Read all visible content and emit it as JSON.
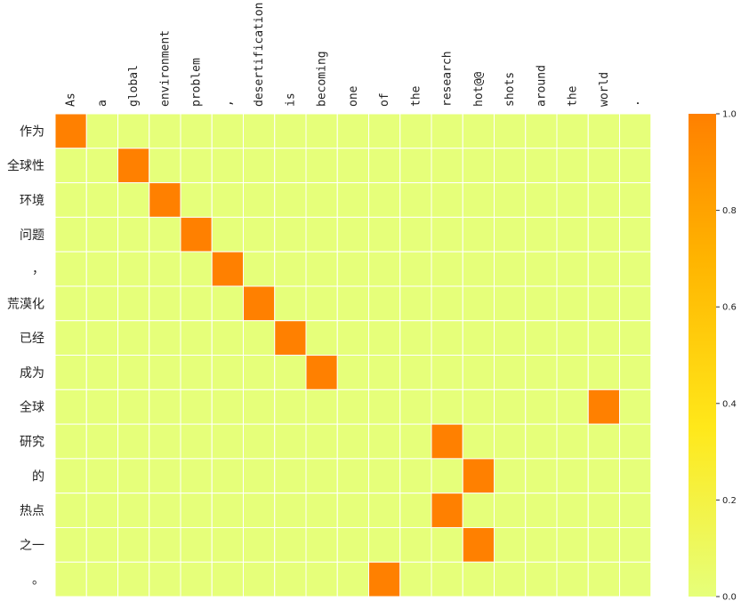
{
  "chart_data": {
    "type": "heatmap",
    "title": "",
    "xlabel": "",
    "ylabel": "",
    "columns": [
      "As",
      "a",
      "global",
      "environment",
      "problem",
      ",",
      "desertification",
      "is",
      "becoming",
      "one",
      "of",
      "the",
      "research",
      "hot@@",
      "shots",
      "around",
      "the",
      "world",
      "."
    ],
    "rows": [
      "作为",
      "全球性",
      "环境",
      "问题",
      "，",
      "荒漠化",
      "已经",
      "成为",
      "全球",
      "研究",
      "的",
      "热点",
      "之一",
      "。"
    ],
    "values": [
      [
        1,
        0,
        0,
        0,
        0,
        0,
        0,
        0,
        0,
        0,
        0,
        0,
        0,
        0,
        0,
        0,
        0,
        0,
        0
      ],
      [
        0,
        0,
        1,
        0,
        0,
        0,
        0,
        0,
        0,
        0,
        0,
        0,
        0,
        0,
        0,
        0,
        0,
        0,
        0
      ],
      [
        0,
        0,
        0,
        1,
        0,
        0,
        0,
        0,
        0,
        0,
        0,
        0,
        0,
        0,
        0,
        0,
        0,
        0,
        0
      ],
      [
        0,
        0,
        0,
        0,
        1,
        0,
        0,
        0,
        0,
        0,
        0,
        0,
        0,
        0,
        0,
        0,
        0,
        0,
        0
      ],
      [
        0,
        0,
        0,
        0,
        0,
        1,
        0,
        0,
        0,
        0,
        0,
        0,
        0,
        0,
        0,
        0,
        0,
        0,
        0
      ],
      [
        0,
        0,
        0,
        0,
        0,
        0,
        1,
        0,
        0,
        0,
        0,
        0,
        0,
        0,
        0,
        0,
        0,
        0,
        0
      ],
      [
        0,
        0,
        0,
        0,
        0,
        0,
        0,
        1,
        0,
        0,
        0,
        0,
        0,
        0,
        0,
        0,
        0,
        0,
        0
      ],
      [
        0,
        0,
        0,
        0,
        0,
        0,
        0,
        0,
        1,
        0,
        0,
        0,
        0,
        0,
        0,
        0,
        0,
        0,
        0
      ],
      [
        0,
        0,
        0,
        0,
        0,
        0,
        0,
        0,
        0,
        0,
        0,
        0,
        0,
        0,
        0,
        0,
        0,
        1,
        0
      ],
      [
        0,
        0,
        0,
        0,
        0,
        0,
        0,
        0,
        0,
        0,
        0,
        0,
        1,
        0,
        0,
        0,
        0,
        0,
        0
      ],
      [
        0,
        0,
        0,
        0,
        0,
        0,
        0,
        0,
        0,
        0,
        0,
        0,
        0,
        1,
        0,
        0,
        0,
        0,
        0
      ],
      [
        0,
        0,
        0,
        0,
        0,
        0,
        0,
        0,
        0,
        0,
        0,
        0,
        1,
        0,
        0,
        0,
        0,
        0,
        0
      ],
      [
        0,
        0,
        0,
        0,
        0,
        0,
        0,
        0,
        0,
        0,
        0,
        0,
        0,
        1,
        0,
        0,
        0,
        0,
        0
      ],
      [
        0,
        0,
        0,
        0,
        0,
        0,
        0,
        0,
        0,
        0,
        1,
        0,
        0,
        0,
        0,
        0,
        0,
        0,
        0
      ]
    ],
    "colorbar": {
      "min": 0,
      "max": 1,
      "ticks": [
        "0.0",
        "0.2",
        "0.4",
        "0.6",
        "0.8",
        "1.0"
      ],
      "colors": [
        "#e6ff7a",
        "#ffe81a",
        "#ffb400",
        "#ff8000"
      ]
    },
    "grid": true
  }
}
